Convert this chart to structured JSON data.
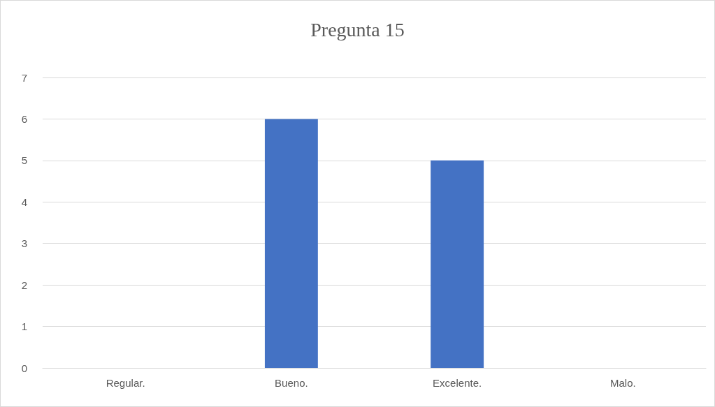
{
  "chart_data": {
    "type": "bar",
    "title": "Pregunta 15",
    "categories": [
      "Regular.",
      "Bueno.",
      "Excelente.",
      "Malo."
    ],
    "values": [
      0,
      6,
      5,
      0
    ],
    "color": "#4472c4",
    "ylim": [
      0,
      7
    ],
    "yticks": [
      0,
      1,
      2,
      3,
      4,
      5,
      6,
      7
    ],
    "grid": "y"
  }
}
